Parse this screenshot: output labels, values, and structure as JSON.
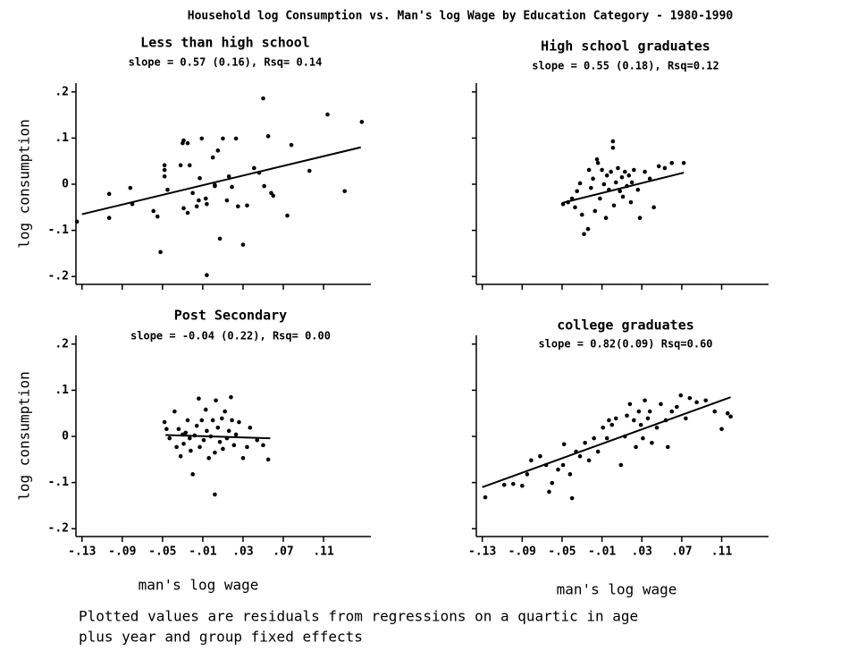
{
  "title": "Household log Consumption vs. Man's log Wage by Education Category - 1980-1990",
  "note": [
    "Plotted values are residuals from regressions on a quartic in age",
    "plus year and group fixed effects"
  ],
  "chart_data": [
    {
      "type": "scatter",
      "title": "Less than high school",
      "subtitle": "slope = 0.57 (0.16), Rsq= 0.14",
      "y_label": "log consumption",
      "color": "#000000",
      "xlim": [
        -0.136,
        0.157
      ],
      "ylim": [
        -0.217,
        0.219
      ],
      "xticks": [
        -0.13,
        -0.09,
        -0.05,
        -0.01,
        0.03,
        0.07,
        0.11
      ],
      "show_xtick_labels": false,
      "show_ytick_labels": true,
      "yticks": [
        {
          "value": 0.2,
          "label": ".2"
        },
        {
          "value": 0.1,
          "label": ".1"
        },
        0,
        {
          "value": -0.1,
          "label": "-.1"
        },
        {
          "value": -0.2,
          "label": "-.2"
        }
      ],
      "fit": {
        "x": [
          -0.13,
          0.147
        ],
        "y": [
          -0.065,
          0.08
        ]
      },
      "x": [
        -0.135,
        -0.103,
        -0.103,
        -0.082,
        -0.08,
        -0.059,
        -0.052,
        -0.048,
        -0.048,
        -0.048,
        -0.045,
        -0.055,
        -0.032,
        -0.03,
        -0.029,
        -0.025,
        -0.023,
        -0.029,
        -0.025,
        -0.02,
        -0.016,
        -0.014,
        -0.013,
        -0.011,
        -0.007,
        -0.006,
        -0.006,
        0.0,
        0.002,
        0.002,
        0.005,
        0.007,
        0.01,
        0.014,
        0.016,
        0.019,
        0.023,
        0.025,
        0.03,
        0.034,
        0.041,
        0.046,
        0.05,
        0.051,
        0.055,
        0.058,
        0.06,
        0.074,
        0.078,
        0.096,
        0.114,
        0.131,
        0.148
      ],
      "y": [
        -0.081,
        -0.021,
        -0.073,
        -0.008,
        -0.043,
        -0.058,
        -0.147,
        0.041,
        0.031,
        0.017,
        -0.012,
        -0.07,
        0.041,
        0.089,
        0.095,
        0.089,
        0.041,
        -0.052,
        -0.062,
        -0.019,
        -0.048,
        -0.035,
        0.013,
        0.099,
        -0.031,
        -0.197,
        -0.043,
        0.058,
        -0.002,
        -0.004,
        0.073,
        -0.118,
        0.099,
        -0.035,
        0.017,
        -0.006,
        0.099,
        -0.048,
        -0.131,
        -0.046,
        0.035,
        0.025,
        0.186,
        -0.004,
        0.104,
        -0.019,
        -0.025,
        -0.068,
        0.085,
        0.029,
        0.151,
        -0.015,
        0.135
      ]
    },
    {
      "type": "scatter",
      "title": "High school graduates",
      "subtitle": "slope = 0.55 (0.18), Rsq=0.12",
      "color": "#000000",
      "xlim": [
        -0.136,
        0.157
      ],
      "ylim": [
        -0.217,
        0.219
      ],
      "xticks": [
        -0.13,
        -0.09,
        -0.05,
        -0.01,
        0.03,
        0.07,
        0.11
      ],
      "show_xtick_labels": false,
      "show_ytick_labels": false,
      "yticks": [
        0.2,
        0.1,
        0,
        -0.1,
        -0.2
      ],
      "fit": {
        "x": [
          -0.049,
          0.072
        ],
        "y": [
          -0.04,
          0.025
        ]
      },
      "x": [
        -0.049,
        -0.044,
        -0.04,
        -0.037,
        -0.035,
        -0.032,
        -0.03,
        -0.028,
        -0.024,
        -0.023,
        -0.021,
        -0.019,
        -0.017,
        -0.015,
        -0.014,
        -0.012,
        -0.01,
        -0.008,
        -0.006,
        -0.005,
        -0.003,
        -0.001,
        0.001,
        0.001,
        0.002,
        0.004,
        0.006,
        0.008,
        0.01,
        0.011,
        0.013,
        0.015,
        0.017,
        0.019,
        0.02,
        0.022,
        0.026,
        0.028,
        0.033,
        0.038,
        0.042,
        0.047,
        0.053,
        0.06,
        0.072
      ],
      "y": [
        -0.043,
        -0.039,
        -0.031,
        -0.05,
        -0.015,
        0.002,
        -0.066,
        -0.108,
        -0.097,
        0.031,
        -0.008,
        0.012,
        -0.058,
        0.054,
        0.046,
        -0.031,
        0.031,
        0,
        -0.073,
        0.019,
        -0.012,
        0.027,
        0.093,
        0.079,
        -0.046,
        0.004,
        0.035,
        -0.015,
        0.015,
        -0.027,
        0.027,
        -0.004,
        0.019,
        -0.039,
        0.004,
        0.031,
        -0.012,
        -0.073,
        0.027,
        0.012,
        -0.05,
        0.039,
        0.035,
        0.046,
        0.046
      ]
    },
    {
      "type": "scatter",
      "title": "Post Secondary",
      "subtitle": "slope = -0.04 (0.22), Rsq= 0.00",
      "y_label": "log consumption",
      "x_label": "man's log wage",
      "color": "#000000",
      "xlim": [
        -0.136,
        0.157
      ],
      "ylim": [
        -0.217,
        0.219
      ],
      "xticks": [
        {
          "value": -0.13,
          "label": "-.13"
        },
        {
          "value": -0.09,
          "label": "-.09"
        },
        {
          "value": -0.05,
          "label": "-.05"
        },
        {
          "value": -0.01,
          "label": "-.01"
        },
        {
          "value": 0.03,
          "label": ".03"
        },
        {
          "value": 0.07,
          "label": ".07"
        },
        {
          "value": 0.11,
          "label": ".11"
        }
      ],
      "show_xtick_labels": true,
      "show_ytick_labels": true,
      "yticks": [
        {
          "value": 0.2,
          "label": ".2"
        },
        {
          "value": 0.1,
          "label": ".1"
        },
        0,
        {
          "value": -0.1,
          "label": "-.1"
        },
        {
          "value": -0.2,
          "label": "-.2"
        }
      ],
      "fit": {
        "x": [
          -0.047,
          0.057
        ],
        "y": [
          0.003,
          -0.004
        ]
      },
      "x": [
        -0.048,
        -0.046,
        -0.043,
        -0.038,
        -0.036,
        -0.034,
        -0.032,
        -0.03,
        -0.029,
        -0.027,
        -0.025,
        -0.023,
        -0.022,
        -0.02,
        -0.018,
        -0.016,
        -0.014,
        -0.013,
        -0.011,
        -0.009,
        -0.007,
        -0.006,
        -0.004,
        -0.002,
        0.0,
        0.002,
        0.003,
        0.005,
        0.007,
        0.009,
        0.01,
        0.012,
        0.014,
        0.016,
        0.018,
        0.019,
        0.021,
        0.023,
        0.026,
        0.03,
        0.034,
        0.037,
        0.044,
        0.05,
        0.055,
        0.002
      ],
      "y": [
        0.031,
        0.016,
        -0.004,
        0.054,
        -0.023,
        0.016,
        -0.043,
        0.004,
        -0.016,
        0.008,
        0.035,
        -0.004,
        -0.031,
        -0.082,
        0.002,
        0.023,
        0.082,
        -0.023,
        0.035,
        -0.008,
        0.058,
        0.012,
        -0.047,
        0,
        0.035,
        -0.035,
        0.078,
        0.019,
        -0.012,
        0.039,
        -0.027,
        0.054,
        -0.004,
        0.012,
        0.085,
        0.035,
        -0.019,
        0.004,
        0.031,
        -0.047,
        -0.023,
        0.019,
        -0.008,
        -0.019,
        -0.05,
        -0.126
      ]
    },
    {
      "type": "scatter",
      "title": "college graduates",
      "subtitle": "slope = 0.82(0.09) Rsq=0.60",
      "x_label": "man's log wage",
      "color": "#000000",
      "xlim": [
        -0.136,
        0.157
      ],
      "ylim": [
        -0.217,
        0.219
      ],
      "xticks": [
        {
          "value": -0.13,
          "label": "-.13"
        },
        {
          "value": -0.09,
          "label": "-.09"
        },
        {
          "value": -0.05,
          "label": "-.05"
        },
        {
          "value": -0.01,
          "label": "-.01"
        },
        {
          "value": 0.03,
          "label": ".03"
        },
        {
          "value": 0.07,
          "label": ".07"
        },
        {
          "value": 0.11,
          "label": ".11"
        }
      ],
      "show_xtick_labels": true,
      "show_ytick_labels": false,
      "yticks": [
        0.2,
        0.1,
        0,
        -0.1,
        -0.2
      ],
      "fit": {
        "x": [
          -0.13,
          0.119
        ],
        "y": [
          -0.11,
          0.085
        ]
      },
      "x": [
        -0.127,
        -0.108,
        -0.099,
        -0.09,
        -0.085,
        -0.081,
        -0.072,
        -0.066,
        -0.063,
        -0.06,
        -0.054,
        -0.049,
        -0.048,
        -0.042,
        -0.04,
        -0.036,
        -0.032,
        -0.027,
        -0.023,
        -0.018,
        -0.014,
        -0.009,
        -0.005,
        -0.003,
        0.0,
        0.004,
        0.009,
        0.013,
        0.015,
        0.018,
        0.022,
        0.024,
        0.027,
        0.029,
        0.031,
        0.033,
        0.036,
        0.038,
        0.04,
        0.045,
        0.049,
        0.054,
        0.056,
        0.06,
        0.065,
        0.069,
        0.074,
        0.078,
        0.085,
        0.094,
        0.103,
        0.11,
        0.116,
        0.119
      ],
      "y": [
        -0.132,
        -0.105,
        -0.103,
        -0.107,
        -0.082,
        -0.052,
        -0.043,
        -0.062,
        -0.12,
        -0.101,
        -0.072,
        -0.062,
        -0.017,
        -0.082,
        -0.134,
        -0.033,
        -0.043,
        -0.014,
        -0.052,
        -0.004,
        -0.033,
        0.019,
        -0.004,
        0.035,
        0.025,
        0.039,
        -0.062,
        0,
        0.045,
        0.07,
        0.035,
        -0.023,
        0.054,
        0.025,
        -0.004,
        0.078,
        0.039,
        0.054,
        -0.014,
        0.019,
        0.07,
        0.035,
        -0.023,
        0.054,
        0.064,
        0.089,
        0.039,
        0.083,
        0.074,
        0.078,
        0.054,
        0.016,
        0.05,
        0.043
      ]
    }
  ]
}
